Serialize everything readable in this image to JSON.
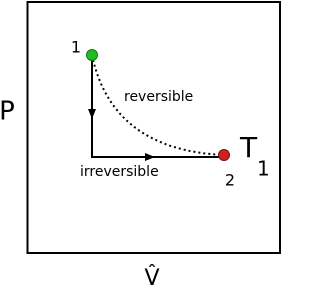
{
  "axes": {
    "y_label": "P",
    "x_label": "V̂"
  },
  "states": [
    {
      "label": "1"
    },
    {
      "label": "2"
    }
  ],
  "paths": {
    "reversible": "reversible",
    "irreversible": "irreversible"
  },
  "isotherm": {
    "label": "T",
    "subscript": "1"
  }
}
